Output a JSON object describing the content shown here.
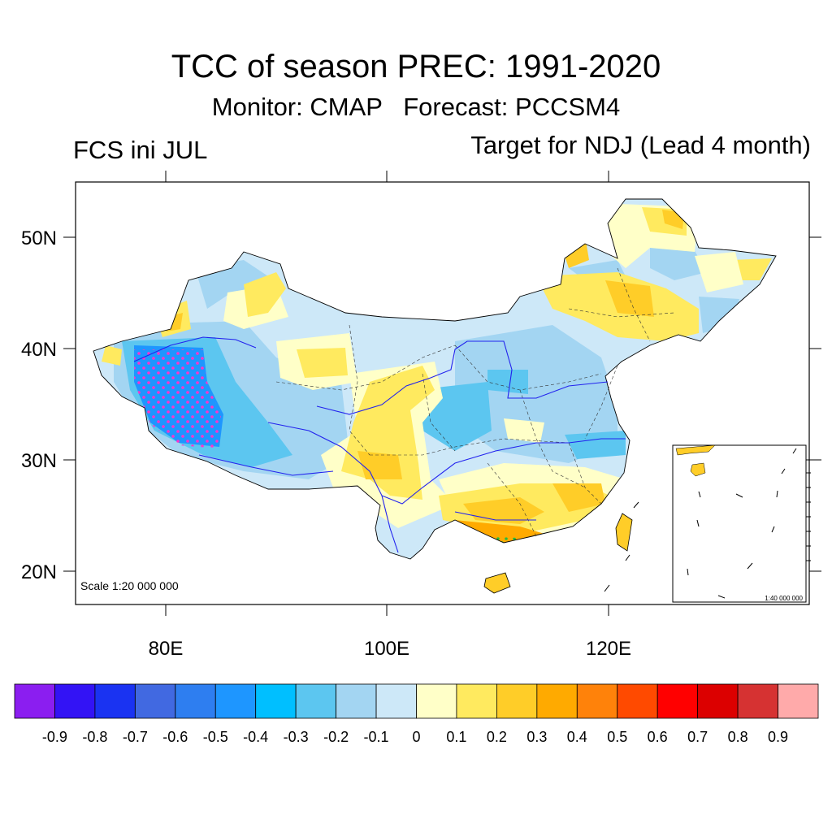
{
  "header": {
    "title": "TCC of season PREC: 1991-2020",
    "subtitle": "Monitor: CMAP   Forecast: PCCSM4",
    "left_string": "FCS ini JUL",
    "right_string": "Target for NDJ (Lead 4 month)"
  },
  "map": {
    "lat_labels": [
      "50N",
      "40N",
      "30N",
      "20N"
    ],
    "lon_labels": [
      "80E",
      "100E",
      "120E"
    ],
    "scale_label": "Scale 1:20 000 000",
    "inset_scale_label": "1:40 000 000",
    "stipple_color": "#ff33cc",
    "stipple_color_south": "#22bb44"
  },
  "colorbar": {
    "labels": [
      "-0.9",
      "-0.8",
      "-0.7",
      "-0.6",
      "-0.5",
      "-0.4",
      "-0.3",
      "-0.2",
      "-0.1",
      "0",
      "0.1",
      "0.2",
      "0.3",
      "0.4",
      "0.5",
      "0.6",
      "0.7",
      "0.8",
      "0.9"
    ],
    "colors": [
      "#8b1ef0",
      "#3313f5",
      "#1a33f2",
      "#4169e1",
      "#2e7ef0",
      "#1e96ff",
      "#00bfff",
      "#5cc6f0",
      "#a3d5f2",
      "#cde8f8",
      "#ffffc8",
      "#ffea5f",
      "#ffcd28",
      "#ffaa00",
      "#ff820a",
      "#ff4a00",
      "#ff0000",
      "#dc0000",
      "#d63232",
      "#ffaaaa"
    ]
  }
}
